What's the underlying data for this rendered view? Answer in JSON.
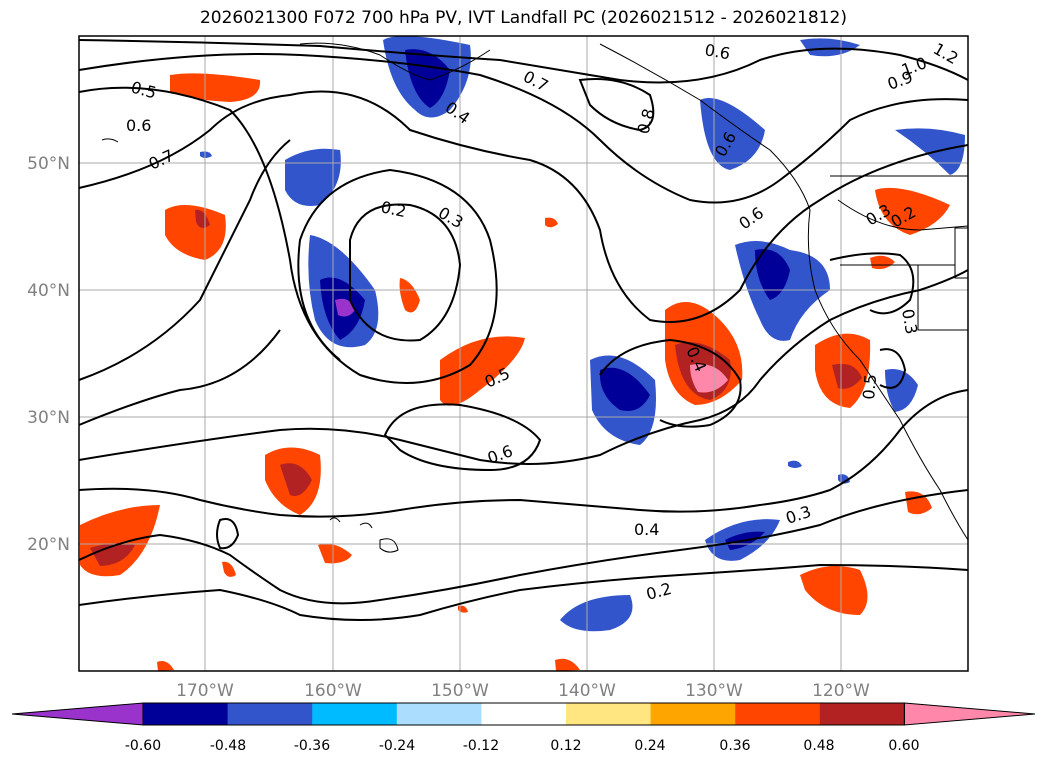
{
  "title": "2026021300 F072 700 hPa PV, IVT Landfall PC (2026021512 - 2026021812)",
  "lat_labels": [
    "50°N",
    "40°N",
    "30°N",
    "20°N"
  ],
  "lon_labels": [
    "170°W",
    "160°W",
    "150°W",
    "140°W",
    "130°W",
    "120°W"
  ],
  "contour_labels": [
    "0.5",
    "0.6",
    "0.7",
    "0.2",
    "0.3",
    "0.4",
    "0.7",
    "0.6",
    "0.8",
    "0.6",
    "1.0",
    "0.9",
    "1.2",
    "0.6",
    "0.2",
    "0.4",
    "0.5",
    "0.6",
    "0.3",
    "0.4",
    "0.3",
    "0.2",
    "0.5",
    "0.3"
  ],
  "colorbar": {
    "ticks": [
      "-0.60",
      "-0.48",
      "-0.36",
      "-0.24",
      "-0.12",
      "0.12",
      "0.24",
      "0.36",
      "0.48",
      "0.60"
    ],
    "colors": [
      "#9933cc",
      "#000099",
      "#3355cc",
      "#00bbff",
      "#aaddff",
      "#ffffff",
      "#ffe680",
      "#ffa500",
      "#ff4500",
      "#b22222",
      "#ff88aa"
    ]
  }
}
